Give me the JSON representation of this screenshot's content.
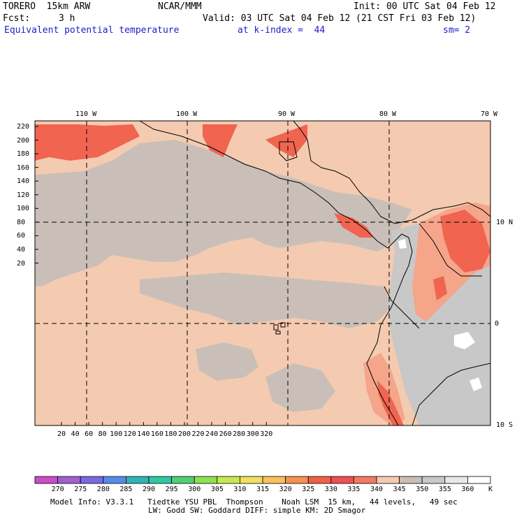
{
  "header": {
    "model": "TORERO  15km ARW",
    "center": "NCAR/MMM",
    "init": "Init: 00 UTC Sat 04 Feb 12",
    "fcst_label": "Fcst:",
    "fcst_value": "3 h",
    "valid": "Valid: 03 UTC Sat 04 Feb 12 (21 CST Fri 03 Feb 12)",
    "field": "Equivalent potential temperature",
    "level": "at k-index =  44",
    "smooth": "sm= 2"
  },
  "map": {
    "lon_labels": [
      "110 W",
      "100 W",
      "90 W",
      "80 W",
      "70 W"
    ],
    "lat_labels": [
      "10 N",
      "0",
      "10 S"
    ],
    "y_ticks": [
      "220",
      "200",
      "180",
      "160",
      "140",
      "120",
      "100",
      "80",
      "60",
      "40",
      "20"
    ],
    "x_ticks": [
      "20",
      "40",
      "60",
      "80",
      "100",
      "120",
      "140",
      "160",
      "180",
      "200",
      "220",
      "240",
      "260",
      "280",
      "300",
      "320"
    ],
    "colors": {
      "ocean_base": "#f4cbb0",
      "mid_gray": "#c9bfb8",
      "light_gray": "#c8c8c8",
      "salmon": "#f4a58a",
      "red": "#f06450",
      "white": "#ffffff"
    }
  },
  "legend": {
    "levels": [
      "270",
      "275",
      "280",
      "285",
      "290",
      "295",
      "300",
      "305",
      "310",
      "315",
      "320",
      "325",
      "330",
      "335",
      "340",
      "345",
      "350",
      "355",
      "360"
    ],
    "unit": "K",
    "colors": [
      "#c84ec8",
      "#a060d0",
      "#7a6ae0",
      "#5a8ae8",
      "#30b4b4",
      "#30c8a0",
      "#50d070",
      "#90e050",
      "#c8e850",
      "#f0e060",
      "#f8c060",
      "#f89050",
      "#f06048",
      "#f05050",
      "#f47a66",
      "#f4cbb0",
      "#c8beb6",
      "#c8c8c8",
      "#e8e8e8",
      "#ffffff"
    ]
  },
  "footer": {
    "line1": "Model Info: V3.3.1   Tiedtke YSU PBL  Thompson    Noah LSM  15 km,   44 levels,   49 sec",
    "line2": "LW: Godd SW: Goddard DIFF: simple KM: 2D Smagor"
  }
}
